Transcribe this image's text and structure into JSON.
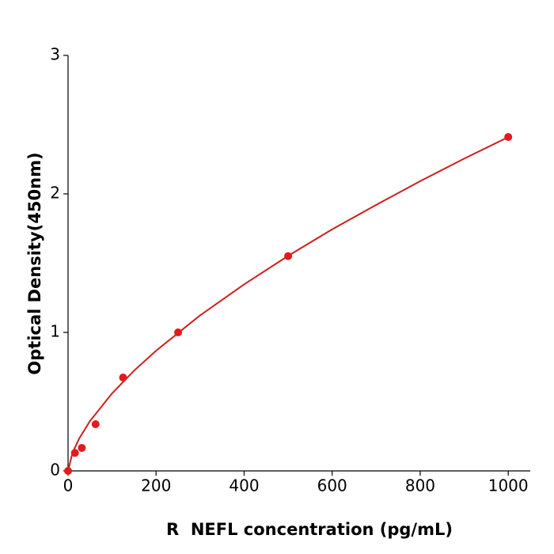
{
  "chart_data": {
    "type": "scatter",
    "x_label": "R  NEFL concentration (pg/mL)",
    "y_label": "Optical Density(450nm)",
    "xlim": [
      0,
      1050
    ],
    "ylim": [
      0,
      3
    ],
    "xticks": [
      0,
      200,
      400,
      600,
      800,
      1000
    ],
    "yticks": [
      0,
      1,
      2,
      3
    ],
    "color": "#e31a1c",
    "x": [
      0,
      15.6,
      31.25,
      62.5,
      125,
      250,
      500,
      1000
    ],
    "values": [
      0,
      0.13,
      0.166,
      0.337,
      0.674,
      1.0,
      1.551,
      2.411
    ],
    "curve": {
      "color": "#cc1f1f",
      "x": [
        0,
        10,
        25,
        50,
        100,
        150,
        200,
        300,
        400,
        500,
        600,
        700,
        800,
        900,
        1000
      ],
      "values": [
        0,
        0.13,
        0.232,
        0.361,
        0.56,
        0.724,
        0.868,
        1.123,
        1.347,
        1.553,
        1.744,
        1.921,
        2.092,
        2.255,
        2.41
      ]
    }
  }
}
